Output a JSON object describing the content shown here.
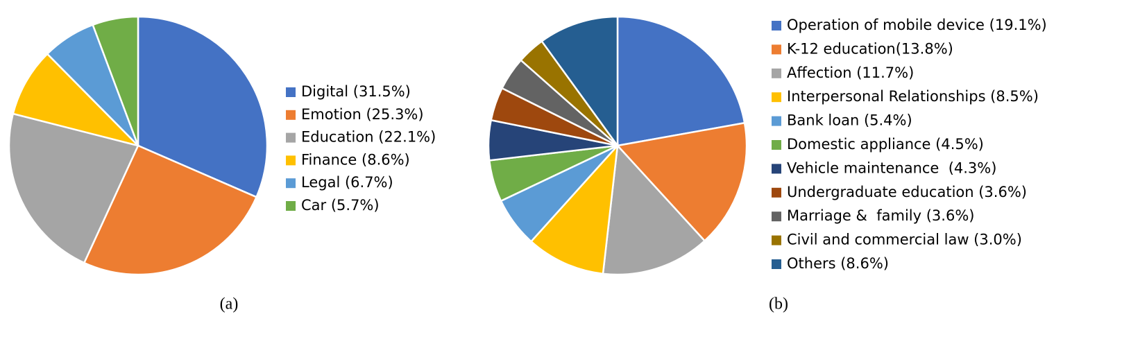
{
  "chart_data": [
    {
      "type": "pie",
      "caption": "(a)",
      "categories": [
        "Digital (31.5%)",
        "Emotion (25.3%)",
        "Education (22.1%)",
        "Finance (8.6%)",
        "Legal (6.7%)",
        "Car (5.7%)"
      ],
      "values": [
        31.5,
        25.3,
        22.1,
        8.6,
        6.7,
        5.7
      ],
      "colors": [
        "#4472c4",
        "#ed7d31",
        "#a5a5a5",
        "#ffc000",
        "#5b9bd5",
        "#70ad47"
      ],
      "legend": "right"
    },
    {
      "type": "pie",
      "caption": "(b)",
      "categories": [
        "Operation of mobile device (19.1%)",
        "K-12 education(13.8%)",
        "Affection (11.7%)",
        "Interpersonal Relationships (8.5%)",
        "Bank loan (5.4%)",
        "Domestic appliance (4.5%)",
        "Vehicle maintenance  (4.3%)",
        "Undergraduate education (3.6%)",
        "Marriage &  family (3.6%)",
        "Civil and commercial law (3.0%)",
        "Others (8.6%)"
      ],
      "values": [
        19.1,
        13.8,
        11.7,
        8.5,
        5.4,
        4.5,
        4.3,
        3.6,
        3.6,
        3.0,
        8.6
      ],
      "colors": [
        "#4472c4",
        "#ed7d31",
        "#a5a5a5",
        "#ffc000",
        "#5b9bd5",
        "#70ad47",
        "#264478",
        "#9e480e",
        "#636363",
        "#997300",
        "#255e91"
      ],
      "legend": "right"
    }
  ]
}
